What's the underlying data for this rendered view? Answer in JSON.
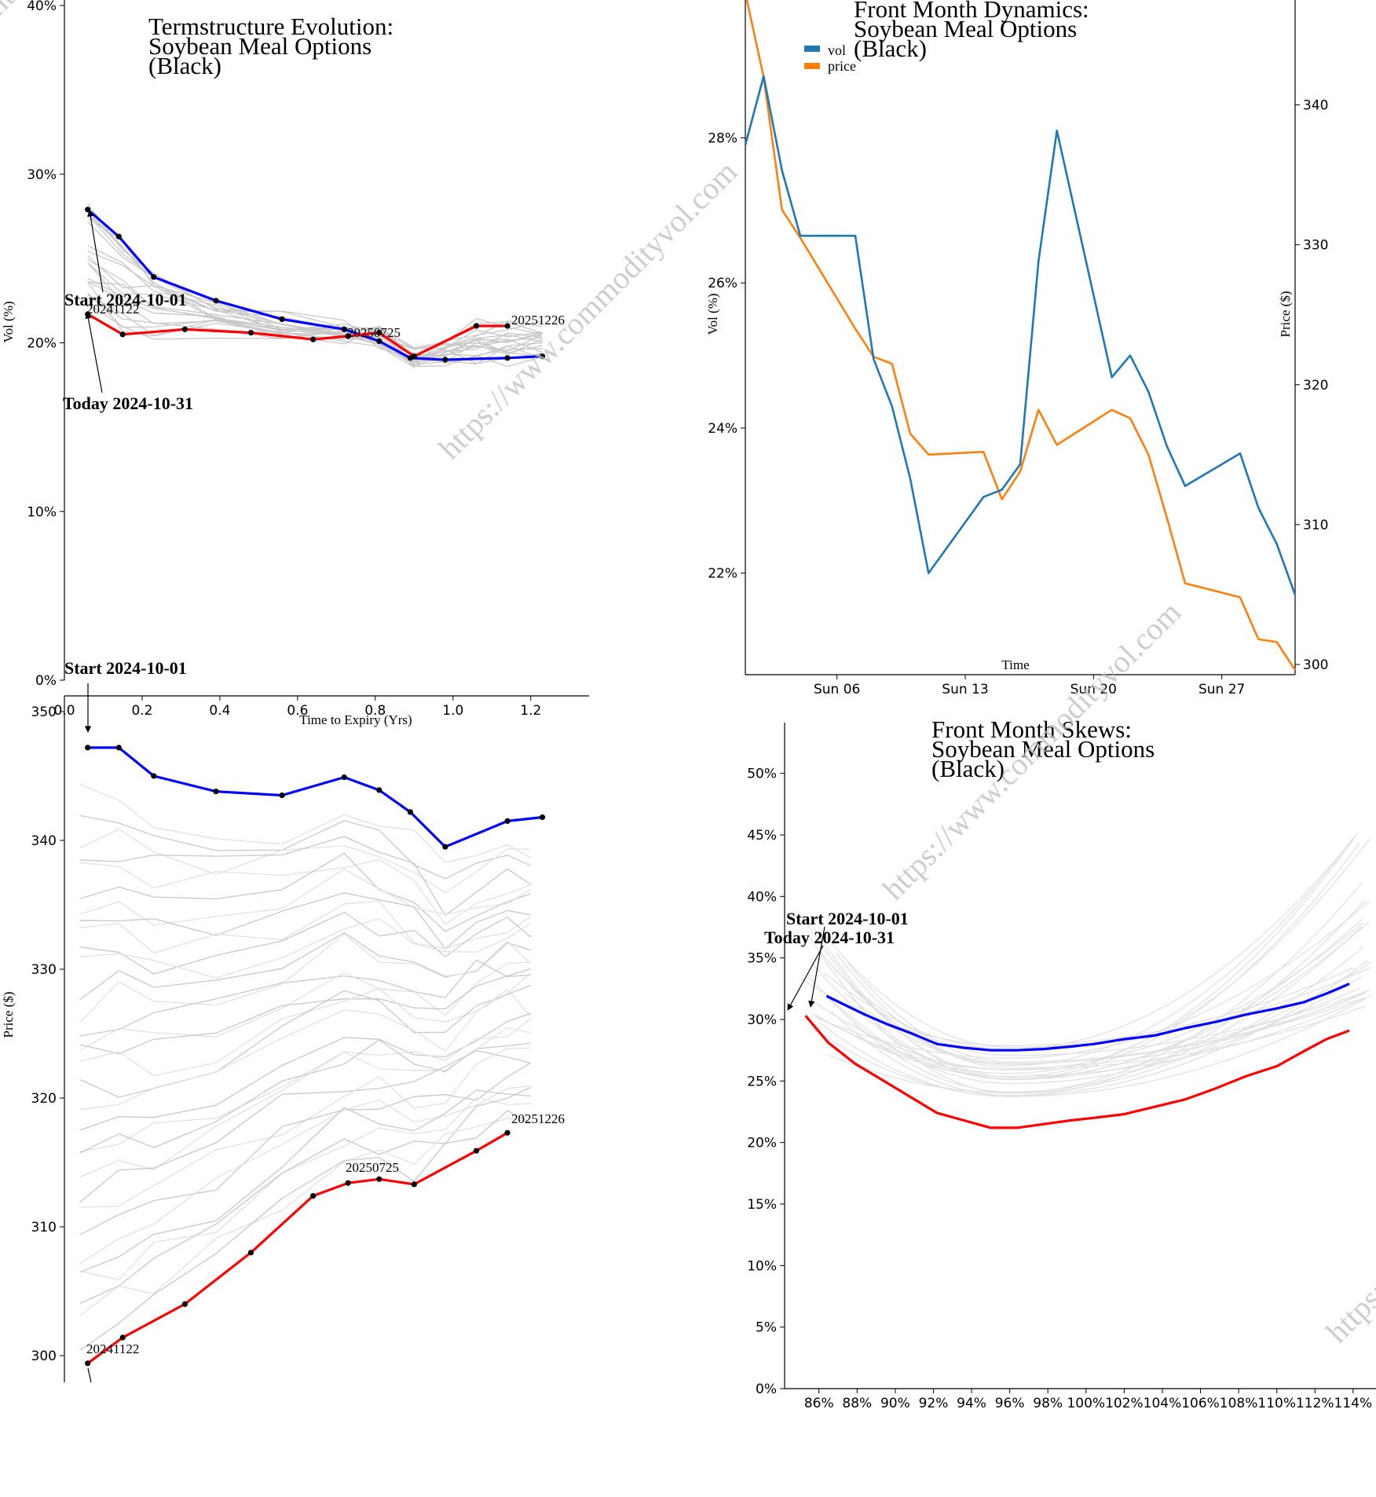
{
  "watermark": "https://www.commodityvol.com",
  "chart_data": [
    {
      "id": "termstructure_vol",
      "type": "line",
      "title": [
        "Termstructure Evolution:",
        "Soybean Meal Options",
        "(Black)"
      ],
      "xlabel": "Time to Expiry (Yrs)",
      "ylabel": "Vol (%)",
      "xlim": [
        0.0,
        1.35
      ],
      "ylim": [
        0,
        40
      ],
      "xticks": [
        "0.0",
        "0.2",
        "0.4",
        "0.6",
        "0.8",
        "1.0",
        "1.2"
      ],
      "yticks": [
        "0%",
        "10%",
        "20%",
        "30%",
        "40%"
      ],
      "series": [
        {
          "name": "Start 2024-10-01",
          "color": "#0000ff",
          "x": [
            0.06,
            0.14,
            0.23,
            0.39,
            0.56,
            0.72,
            0.81,
            0.89,
            0.98,
            1.14,
            1.23
          ],
          "y": [
            27.9,
            26.3,
            23.9,
            22.5,
            21.4,
            20.8,
            20.1,
            19.1,
            19.0,
            19.1,
            19.2
          ]
        },
        {
          "name": "Today 2024-10-31",
          "color": "#ff0000",
          "x": [
            0.06,
            0.15,
            0.31,
            0.48,
            0.64,
            0.73,
            0.81,
            0.9,
            1.06,
            1.14
          ],
          "y": [
            21.7,
            20.5,
            20.8,
            20.6,
            20.2,
            20.4,
            20.6,
            19.2,
            21.0,
            21.0
          ]
        }
      ],
      "annotations": [
        {
          "text": "Start 2024-10-01"
        },
        {
          "text": "Today 2024-10-31"
        },
        {
          "text": "20241122"
        },
        {
          "text": "20250725"
        },
        {
          "text": "20251226"
        }
      ]
    },
    {
      "id": "termstructure_price",
      "type": "line",
      "xlabel": "",
      "ylabel": "Price ($)",
      "ylim": [
        298,
        350
      ],
      "yticks": [
        "300",
        "310",
        "320",
        "330",
        "340",
        "350"
      ],
      "series": [
        {
          "name": "Start 2024-10-01",
          "color": "#0000ff",
          "x": [
            0.06,
            0.14,
            0.23,
            0.39,
            0.56,
            0.72,
            0.81,
            0.89,
            0.98,
            1.14,
            1.23
          ],
          "y": [
            347.2,
            347.2,
            345.0,
            343.8,
            343.5,
            344.9,
            343.9,
            342.2,
            339.5,
            341.5,
            341.8
          ]
        },
        {
          "name": "Today 2024-10-31",
          "color": "#ff0000",
          "x": [
            0.06,
            0.15,
            0.31,
            0.48,
            0.64,
            0.73,
            0.81,
            0.9,
            1.06,
            1.14
          ],
          "y": [
            299.4,
            301.4,
            304.0,
            308.0,
            312.4,
            313.4,
            313.7,
            313.3,
            315.9,
            317.3
          ]
        }
      ],
      "annotations": [
        {
          "text": "Start 2024-10-01"
        },
        {
          "text": "20241122"
        },
        {
          "text": "20250725"
        },
        {
          "text": "20251226"
        }
      ]
    },
    {
      "id": "front_month_dynamics",
      "type": "line",
      "title": [
        "Front Month Dynamics:",
        "Soybean Meal Options",
        "(Black)"
      ],
      "xlabel": "Time",
      "ylabel": "Vol (%)",
      "y2label": "Price ($)",
      "xticks": [
        "Sun 06",
        "Sun 13",
        "Sun 20",
        "Sun 27"
      ],
      "yticks": [
        "22%",
        "24%",
        "26%",
        "28%"
      ],
      "y2ticks": [
        "300",
        "310",
        "320",
        "330",
        "340"
      ],
      "ylim": [
        20.6,
        29.9
      ],
      "y2lim": [
        300,
        347.5
      ],
      "legend": [
        {
          "label": "vol",
          "color": "#1f77b4"
        },
        {
          "label": "price",
          "color": "#ff7f0e"
        }
      ],
      "series": [
        {
          "name": "vol",
          "color": "#1f77b4",
          "x": [
            1.0,
            2.0,
            3.0,
            4.0,
            7.0,
            8.0,
            9.0,
            10.0,
            11.0,
            14.0,
            15.0,
            16.0,
            17.0,
            18.0,
            21.0,
            22.0,
            23.0,
            24.0,
            25.0,
            28.0,
            29.0,
            30.0,
            31.0
          ],
          "y": [
            27.9,
            28.85,
            27.55,
            26.65,
            26.65,
            24.95,
            24.3,
            23.3,
            22.0,
            23.05,
            23.15,
            23.5,
            26.3,
            28.1,
            24.7,
            25.0,
            24.5,
            23.75,
            23.2,
            23.65,
            22.9,
            22.4,
            21.7
          ]
        },
        {
          "name": "price",
          "color": "#ff7f0e",
          "x": [
            1.0,
            2.0,
            3.0,
            4.0,
            7.0,
            8.0,
            9.0,
            10.0,
            11.0,
            14.0,
            15.0,
            16.0,
            17.0,
            18.0,
            21.0,
            22.0,
            23.0,
            24.0,
            25.0,
            28.0,
            29.0,
            30.0,
            31.0
          ],
          "y": [
            348.0,
            342.0,
            332.5,
            330.5,
            324.0,
            322.0,
            321.5,
            316.5,
            315.0,
            315.2,
            311.8,
            313.8,
            318.2,
            315.7,
            318.2,
            317.6,
            315.0,
            310.5,
            305.8,
            304.8,
            301.8,
            301.6,
            299.6
          ]
        }
      ]
    },
    {
      "id": "front_month_skews",
      "type": "line",
      "title": [
        "Front Month Skews:",
        "Soybean Meal Options",
        "(Black)"
      ],
      "xlabel": "",
      "ylabel": "",
      "xlim": [
        84.2,
        115.2
      ],
      "ylim": [
        0,
        54
      ],
      "xticks": [
        "86%",
        "88%",
        "90%",
        "92%",
        "94%",
        "96%",
        "98%",
        "100%",
        "102%",
        "104%",
        "106%",
        "108%",
        "110%",
        "112%",
        "114%"
      ],
      "yticks": [
        "0%",
        "5%",
        "10%",
        "15%",
        "20%",
        "25%",
        "30%",
        "35%",
        "40%",
        "45%",
        "50%"
      ],
      "series": [
        {
          "name": "Start 2024-10-01",
          "color": "#0000ff",
          "x": [
            86.4,
            87.6,
            88.4,
            89.6,
            90.8,
            92.2,
            93.6,
            95.0,
            96.4,
            97.8,
            99.2,
            100.4,
            102.0,
            103.6,
            105.2,
            106.8,
            108.4,
            110.0,
            111.4,
            112.6,
            113.8
          ],
          "y": [
            31.9,
            31.0,
            30.4,
            29.6,
            28.9,
            28.0,
            27.7,
            27.5,
            27.5,
            27.6,
            27.8,
            28.0,
            28.4,
            28.7,
            29.3,
            29.8,
            30.4,
            30.9,
            31.4,
            32.1,
            32.9
          ]
        },
        {
          "name": "Today 2024-10-31",
          "color": "#ff0000",
          "x": [
            85.3,
            86.5,
            87.9,
            89.3,
            90.8,
            92.2,
            93.6,
            95.0,
            96.4,
            97.8,
            99.2,
            100.4,
            102.0,
            103.6,
            105.2,
            106.8,
            108.4,
            110.0,
            111.4,
            112.6,
            113.8
          ],
          "y": [
            30.3,
            28.1,
            26.4,
            25.1,
            23.7,
            22.4,
            21.8,
            21.2,
            21.2,
            21.5,
            21.8,
            22.0,
            22.3,
            22.9,
            23.5,
            24.4,
            25.4,
            26.2,
            27.4,
            28.4,
            29.1
          ]
        }
      ],
      "annotations": [
        {
          "text": "Start 2024-10-01"
        },
        {
          "text": "Today 2024-10-31"
        }
      ]
    }
  ]
}
